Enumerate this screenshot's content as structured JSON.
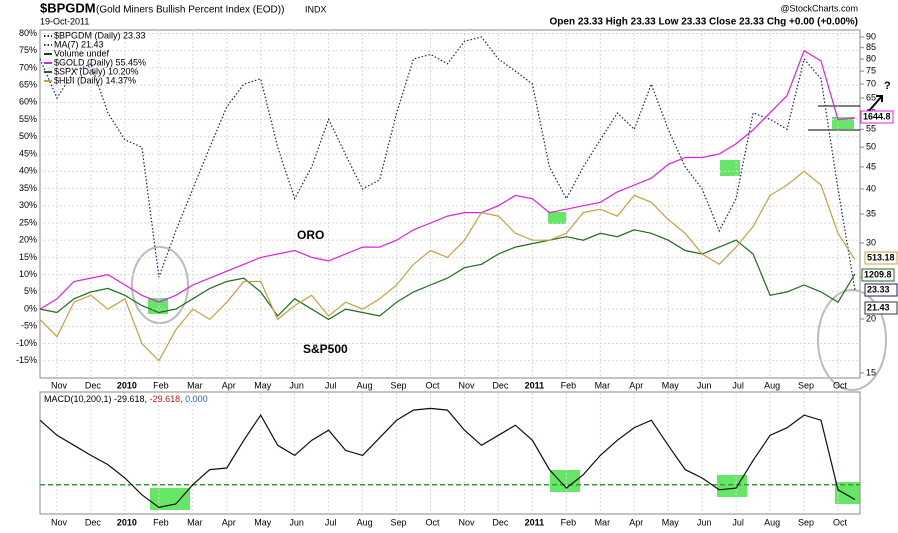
{
  "header": {
    "symbol": "$BPGDM",
    "name": "(Gold Miners Bullish Percent Index (EOD))",
    "exchange": "INDX",
    "date": "19-Oct-2011",
    "source": "@StockCharts.com",
    "quote": "Open 23.33  High 23.33  Low 23.33  Close 23.33  Chg +0.00 (+0.00%)"
  },
  "chart_data": [
    {
      "type": "line",
      "categories": [
        null,
        "Nov",
        null,
        "Dec",
        null,
        "2010",
        null,
        "Feb",
        null,
        "Mar",
        null,
        "Apr",
        null,
        "May",
        null,
        "Jun",
        null,
        "Jul",
        null,
        "Aug",
        null,
        "Sep",
        null,
        "Oct",
        null,
        "Nov",
        null,
        "Dec",
        null,
        "2011",
        null,
        "Feb",
        null,
        "Mar",
        null,
        "Apr",
        null,
        "May",
        null,
        "Jun",
        null,
        "Jul",
        null,
        "Aug",
        null,
        "Sep",
        null,
        "Oct",
        null
      ],
      "series": [
        {
          "name": "$BPGDM (Daily) 23.33",
          "color": "#1c1c6c",
          "style": "dotted",
          "axis": "y2",
          "values": [
            80,
            65,
            75,
            78,
            60,
            52,
            50,
            25,
            32,
            40,
            50,
            62,
            70,
            72,
            50,
            38,
            45,
            58,
            48,
            40,
            42,
            60,
            80,
            82,
            78,
            88,
            90,
            80,
            75,
            70,
            45,
            38,
            45,
            52,
            60,
            55,
            70,
            55,
            45,
            40,
            32,
            38,
            60,
            58,
            55,
            80,
            72,
            40,
            23.33
          ]
        },
        {
          "name": "$GOLD (Daily) 55.45%",
          "color": "#e020e0",
          "style": "solid",
          "values": [
            0,
            3,
            8,
            9,
            10,
            7,
            4,
            2,
            4,
            7,
            9,
            11,
            13,
            15,
            16,
            17,
            15,
            14,
            16,
            18,
            18,
            20,
            23,
            25,
            27,
            28,
            28,
            30,
            33,
            32,
            28,
            29,
            30,
            31,
            34,
            36,
            38,
            42,
            44,
            44,
            45,
            48,
            52,
            57,
            62,
            75,
            72,
            55,
            55.45
          ]
        },
        {
          "name": "$SPX (Daily) 10.20%",
          "color": "#1e6b1e",
          "style": "solid",
          "values": [
            0,
            -1,
            3,
            5,
            6,
            4,
            1,
            -1,
            0,
            3,
            6,
            8,
            9,
            5,
            -2,
            3,
            0,
            -3,
            0,
            -1,
            -2,
            2,
            5,
            7,
            9,
            12,
            13,
            16,
            18,
            19,
            20,
            21,
            20,
            22,
            21,
            23,
            22,
            20,
            17,
            16,
            18,
            20,
            16,
            4,
            5,
            7,
            5,
            2,
            10.2
          ]
        },
        {
          "name": "$HUI (Daily) 14.37%",
          "color": "#c8a040",
          "style": "solid",
          "values": [
            -3,
            -8,
            2,
            4,
            0,
            3,
            -10,
            -15,
            -6,
            0,
            -3,
            2,
            8,
            8,
            -3,
            1,
            4,
            -2,
            2,
            0,
            3,
            7,
            13,
            17,
            15,
            20,
            28,
            27,
            22,
            20,
            20,
            22,
            28,
            29,
            27,
            33,
            31,
            26,
            22,
            16,
            13,
            18,
            24,
            33,
            36,
            40,
            36,
            22,
            14.37
          ]
        }
      ],
      "legend_notes": [
        "MA(7) 21.43",
        "Volume undef"
      ],
      "ylim": [
        -20,
        81
      ],
      "yticks": [
        {
          "value": -15,
          "label": "-15%"
        },
        {
          "value": -10,
          "label": "-10%"
        },
        {
          "value": -5,
          "label": "-5%"
        },
        {
          "value": 0,
          "label": "0%"
        },
        {
          "value": 5,
          "label": "5%"
        },
        {
          "value": 10,
          "label": "10%"
        },
        {
          "value": 15,
          "label": "15%"
        },
        {
          "value": 20,
          "label": "20%"
        },
        {
          "value": 25,
          "label": "25%"
        },
        {
          "value": 30,
          "label": "30%"
        },
        {
          "value": 35,
          "label": "35%"
        },
        {
          "value": 40,
          "label": "40%"
        },
        {
          "value": 45,
          "label": "45%"
        },
        {
          "value": 50,
          "label": "50%"
        },
        {
          "value": 55,
          "label": "55%"
        },
        {
          "value": 60,
          "label": "60%"
        },
        {
          "value": 65,
          "label": "65%"
        },
        {
          "value": 70,
          "label": "70%"
        },
        {
          "value": 75,
          "label": "75%"
        },
        {
          "value": 80,
          "label": "80%"
        }
      ],
      "y2lim": [
        14.6,
        93.4
      ],
      "y2log": true,
      "y2ticks": [
        15,
        20,
        25,
        30,
        35,
        40,
        45,
        50,
        55,
        60,
        65,
        70,
        75,
        80,
        85,
        90
      ],
      "grid": true,
      "annotations": [
        "ORO",
        "S&P500",
        "?"
      ],
      "end_labels": [
        "1644.8",
        "513.18",
        "1209.8",
        "23.33",
        "21.43"
      ]
    },
    {
      "type": "line",
      "legend_parts": [
        {
          "text": "MACD(10,200,1) -29.618,",
          "color": "#000000"
        },
        {
          "text": " -29.618,",
          "color": "#c02020"
        },
        {
          "text": " 0.000",
          "color": "#3060c0"
        }
      ],
      "series": [
        {
          "name": "MACD",
          "color": "#1a0a0a",
          "style": "solid",
          "values": [
            65,
            47,
            35,
            23,
            12,
            -4,
            -24,
            -39,
            -35,
            -12,
            6,
            8,
            41,
            71,
            35,
            23,
            41,
            53,
            29,
            23,
            44,
            65,
            77,
            79,
            77,
            53,
            35,
            47,
            59,
            41,
            6,
            -16,
            0,
            23,
            41,
            56,
            65,
            35,
            6,
            -4,
            -18,
            -16,
            17,
            47,
            56,
            71,
            65,
            -18,
            -29.618
          ]
        }
      ],
      "reference": -12,
      "reference_color": "#3a9a3a",
      "ylim": [
        -60,
        95
      ]
    }
  ]
}
